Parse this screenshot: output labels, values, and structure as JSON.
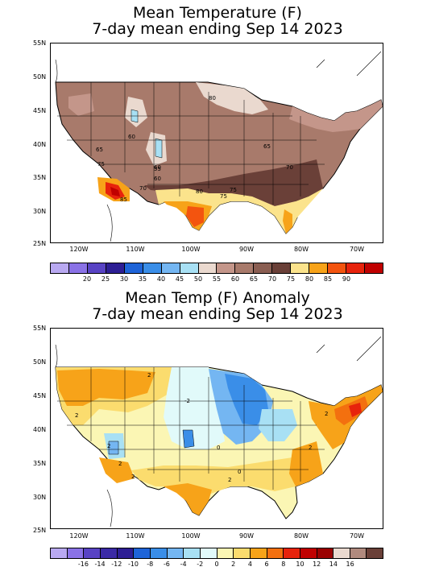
{
  "top_map": {
    "title_line1": "Mean Temperature (F)",
    "title_line2": "7-day mean ending Sep 14 2023",
    "lat_ticks": [
      "55N",
      "50N",
      "45N",
      "40N",
      "35N",
      "30N",
      "25N"
    ],
    "lon_ticks": [
      "120W",
      "110W",
      "100W",
      "90W",
      "80W",
      "70W"
    ],
    "colorbar_colors": [
      "#b9a9f1",
      "#8a72e6",
      "#5843c4",
      "#2d1e94",
      "#1e64d8",
      "#3a8ee8",
      "#74b6f2",
      "#a8e0f4",
      "#ead9cf",
      "#c4968a",
      "#a87a6b",
      "#8a5e52",
      "#6a4038",
      "#fbe38c",
      "#f7a319",
      "#f3540f",
      "#e7230c",
      "#c00000"
    ],
    "colorbar_labels": [
      "20",
      "25",
      "30",
      "35",
      "40",
      "45",
      "50",
      "55",
      "60",
      "65",
      "70",
      "75",
      "80",
      "85",
      "90"
    ],
    "contour_labels": [
      "80",
      "60",
      "65",
      "65",
      "60",
      "75",
      "60",
      "55",
      "70",
      "75",
      "70",
      "80",
      "75",
      "85"
    ]
  },
  "bottom_map": {
    "title_line1": "Mean Temp (F) Anomaly",
    "title_line2": "7-day mean ending Sep 14 2023",
    "lat_ticks": [
      "55N",
      "50N",
      "45N",
      "40N",
      "35N",
      "30N",
      "25N"
    ],
    "lon_ticks": [
      "120W",
      "110W",
      "100W",
      "90W",
      "80W",
      "70W"
    ],
    "colorbar_colors": [
      "#b9a9f1",
      "#8a72e6",
      "#5843c4",
      "#3b2aa6",
      "#2d1e94",
      "#1e64d8",
      "#3a8ee8",
      "#74b6f2",
      "#a8e0f4",
      "#e1fafa",
      "#fbf6b4",
      "#fbdc6e",
      "#f7a319",
      "#f3700f",
      "#e7230c",
      "#c00000",
      "#9a0000",
      "#ead9cf",
      "#b08a7e",
      "#6a4038"
    ],
    "colorbar_labels": [
      "-16",
      "-14",
      "-12",
      "-10",
      "-8",
      "-6",
      "-4",
      "-2",
      "0",
      "2",
      "4",
      "6",
      "8",
      "10",
      "12",
      "14",
      "16"
    ],
    "contour_labels": [
      "2",
      "2",
      "2",
      "-2",
      "2",
      "2",
      "0",
      "0",
      "2",
      "2",
      "2"
    ]
  }
}
